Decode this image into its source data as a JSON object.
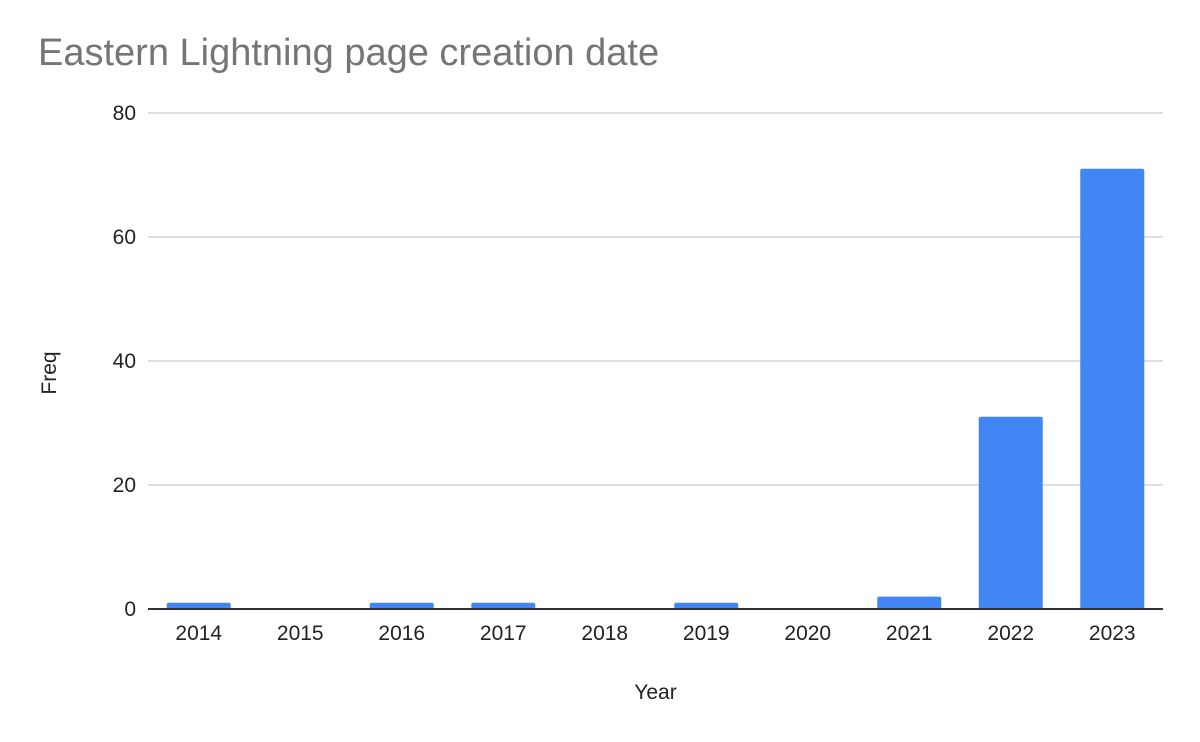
{
  "chart_data": {
    "type": "bar",
    "title": "Eastern Lightning page creation date",
    "xlabel": "Year",
    "ylabel": "Freq",
    "categories": [
      "2014",
      "2015",
      "2016",
      "2017",
      "2018",
      "2019",
      "2020",
      "2021",
      "2022",
      "2023"
    ],
    "values": [
      1,
      0,
      1,
      1,
      0,
      1,
      0,
      2,
      31,
      71
    ],
    "ylim": [
      0,
      80
    ],
    "yticks": [
      0,
      20,
      40,
      60,
      80
    ],
    "grid": true,
    "legend": "none",
    "bar_color": "#4285F4",
    "gridline_color": "#cccccc",
    "baseline_color": "#333333",
    "title_color": "#757575"
  }
}
